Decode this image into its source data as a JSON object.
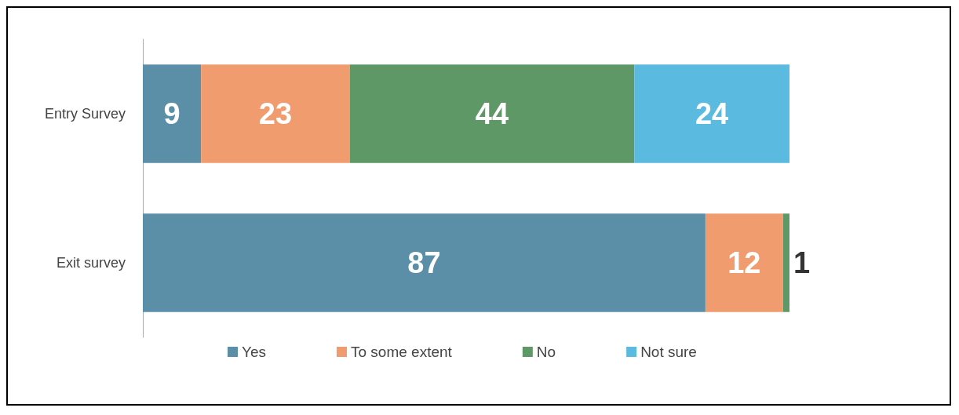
{
  "chart_data": {
    "type": "bar",
    "orientation": "horizontal",
    "stacked": true,
    "categories": [
      "Entry Survey",
      "Exit survey"
    ],
    "series": [
      {
        "name": "Yes",
        "color": "#5b8fa8",
        "values": [
          9,
          87
        ]
      },
      {
        "name": "To some extent",
        "color": "#f09c6f",
        "values": [
          23,
          12
        ]
      },
      {
        "name": "No",
        "color": "#5e9866",
        "values": [
          44,
          1
        ]
      },
      {
        "name": "Not sure",
        "color": "#5bbae0",
        "values": [
          24,
          null
        ]
      }
    ],
    "data_labels": true,
    "legend": "bottom"
  }
}
